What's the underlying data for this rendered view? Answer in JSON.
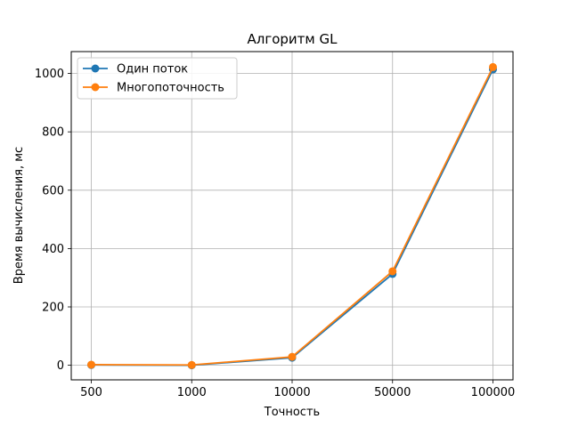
{
  "chart_data": {
    "type": "line",
    "title": "Алгоритм GL",
    "xlabel": "Точность",
    "ylabel": "Время вычисления, мс",
    "categories": [
      "500",
      "1000",
      "10000",
      "50000",
      "100000"
    ],
    "ylim": [
      -50,
      1075
    ],
    "yticks": [
      0,
      200,
      400,
      600,
      800,
      1000
    ],
    "grid": true,
    "legend_position": "top-left",
    "series": [
      {
        "name": "Один поток",
        "color": "#1f77b4",
        "values": [
          1,
          0,
          26,
          313,
          1014
        ]
      },
      {
        "name": "Многопоточность",
        "color": "#ff7f0e",
        "values": [
          2,
          1,
          29,
          322,
          1022
        ]
      }
    ]
  }
}
